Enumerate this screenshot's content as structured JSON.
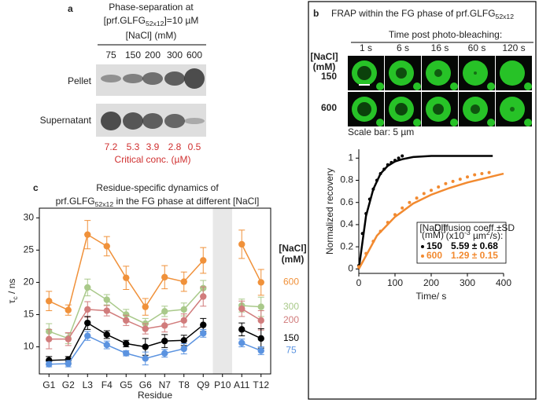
{
  "panel_a": {
    "label": "a",
    "title_line1": "Phase-separation at",
    "title_line2": [
      "[prf.GLFG",
      "52x12",
      "]=10 µM"
    ],
    "nacl_header": "[NaCl] (mM)",
    "lanes": [
      "75",
      "150",
      "200",
      "300",
      "600"
    ],
    "rows": [
      "Pellet",
      "Supernatant"
    ],
    "critical_conc": [
      "7.2",
      "5.3",
      "3.9",
      "2.8",
      "0.5"
    ],
    "critical_conc_label": "Critical conc. (µM)"
  },
  "panel_b": {
    "label": "b",
    "title": [
      "FRAP within the FG phase of prf.GLFG",
      "52x12"
    ],
    "time_header": "Time post photo-bleaching:",
    "times": [
      "1 s",
      "6 s",
      "16 s",
      "60 s",
      "120 s"
    ],
    "row_header": [
      "[NaCl]",
      "(mM)"
    ],
    "rows": [
      "150",
      "600"
    ],
    "scale_bar": "Scale bar: 5 µm"
  },
  "panel_c": {
    "label": "c"
  },
  "chart_data": [
    {
      "type": "line",
      "title": [
        "Residue-specific dynamics of",
        "prf.GLFG",
        "52x12",
        " in the FG phase at different [NaCl]"
      ],
      "x_label": "Residue",
      "y_label": [
        "τ",
        "c",
        " / ns"
      ],
      "legend_title": [
        "[NaCl]",
        "(mM)"
      ],
      "categories": [
        "G1",
        "G2",
        "L3",
        "F4",
        "G5",
        "G6",
        "N7",
        "T8",
        "Q9",
        "P10",
        "A11",
        "T12"
      ],
      "ylim": [
        5.8,
        31.5
      ],
      "yticks": [
        10,
        15,
        20,
        25,
        30
      ],
      "series": [
        {
          "name": "600",
          "color": "#f0913a",
          "values": [
            17.1,
            15.7,
            27.4,
            25.6,
            20.7,
            16.2,
            20.8,
            20.1,
            23.4,
            null,
            25.9,
            20.0
          ],
          "errors": [
            1.5,
            0.8,
            2.2,
            1.5,
            1.8,
            1.3,
            1.8,
            1.5,
            2.0,
            null,
            2.2,
            2.0
          ]
        },
        {
          "name": "300",
          "color": "#a9c98a",
          "values": [
            12.4,
            11.3,
            19.2,
            17.3,
            15.0,
            13.6,
            15.5,
            15.8,
            19.1,
            null,
            16.4,
            16.2
          ],
          "errors": [
            1.2,
            0.8,
            1.3,
            0.8,
            0.8,
            0.8,
            0.8,
            1.0,
            1.2,
            null,
            1.0,
            1.5
          ]
        },
        {
          "name": "200",
          "color": "#d17c7c",
          "values": [
            11.2,
            11.2,
            15.8,
            15.6,
            14.1,
            12.8,
            13.3,
            14.1,
            17.8,
            null,
            15.9,
            14.1
          ],
          "errors": [
            1.5,
            1.0,
            1.2,
            0.8,
            0.8,
            0.8,
            1.0,
            1.0,
            1.5,
            null,
            1.2,
            1.5
          ]
        },
        {
          "name": "150",
          "color": "#000000",
          "values": [
            7.9,
            8.0,
            13.7,
            11.9,
            10.5,
            10.0,
            10.9,
            11.0,
            13.4,
            null,
            12.7,
            11.3
          ],
          "errors": [
            0.6,
            0.5,
            1.0,
            0.6,
            0.5,
            1.3,
            1.0,
            0.8,
            1.0,
            null,
            1.0,
            1.5
          ]
        },
        {
          "name": "75",
          "color": "#5b93e0",
          "values": [
            7.3,
            7.4,
            11.7,
            10.3,
            9.0,
            8.2,
            9.0,
            9.7,
            12.1,
            null,
            10.6,
            9.4
          ],
          "errors": [
            0.4,
            0.5,
            0.7,
            0.6,
            0.4,
            1.0,
            0.6,
            0.8,
            0.6,
            null,
            0.6,
            0.6
          ]
        }
      ]
    },
    {
      "type": "scatter",
      "x_label": "Time/ s",
      "y_label": "Normalized recovery",
      "xlim": [
        0,
        400
      ],
      "xticks": [
        0,
        100,
        200,
        300,
        400
      ],
      "ylim": [
        -0.04,
        1.08
      ],
      "yticks": [
        0,
        0.2,
        0.4,
        0.6,
        0.8,
        1
      ],
      "legend_header": [
        "[NaCl]",
        "(mM)"
      ],
      "coeff_header": [
        "Diffusion coeff.±SD",
        "(x10",
        "-3",
        " µm",
        "2",
        "/s):"
      ],
      "series": [
        {
          "name": "150",
          "color": "#000000",
          "diffusion_coeff": "5.59 ± 0.68",
          "x": [
            0,
            10,
            20,
            30,
            40,
            50,
            60,
            70,
            80,
            90,
            100,
            110,
            120
          ],
          "values": [
            0.03,
            0.32,
            0.5,
            0.63,
            0.72,
            0.8,
            0.86,
            0.9,
            0.94,
            0.96,
            0.98,
            1.0,
            1.02
          ],
          "fit": {
            "x": [
              0,
              20,
              40,
              60,
              80,
              100,
              120,
              150,
              200,
              250,
              300,
              370
            ],
            "values": [
              0,
              0.48,
              0.72,
              0.86,
              0.93,
              0.97,
              0.99,
              1.01,
              1.02,
              1.02,
              1.02,
              1.02
            ]
          }
        },
        {
          "name": "600",
          "color": "#f28a30",
          "diffusion_coeff": "1.29 ± 0.15",
          "x": [
            0,
            20,
            40,
            60,
            80,
            100,
            120,
            140,
            160,
            180,
            200,
            220,
            240,
            260,
            280,
            300,
            320,
            340,
            360
          ],
          "values": [
            0.02,
            0.14,
            0.25,
            0.34,
            0.42,
            0.49,
            0.55,
            0.6,
            0.64,
            0.68,
            0.71,
            0.74,
            0.77,
            0.79,
            0.81,
            0.83,
            0.85,
            0.86,
            0.87
          ],
          "fit": {
            "x": [
              0,
              50,
              100,
              150,
              200,
              250,
              300,
              350,
              400
            ],
            "values": [
              0,
              0.3,
              0.47,
              0.59,
              0.67,
              0.73,
              0.78,
              0.82,
              0.86
            ]
          }
        }
      ]
    }
  ]
}
